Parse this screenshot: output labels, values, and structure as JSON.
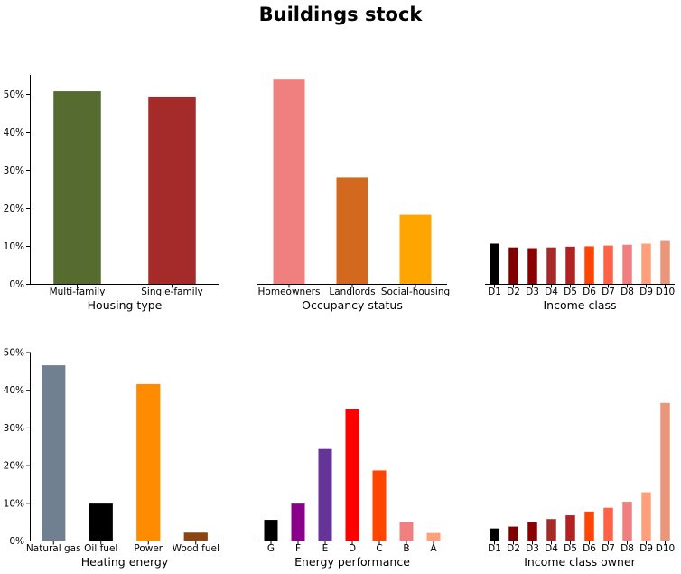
{
  "title": "Buildings stock",
  "chart_data": [
    {
      "type": "bar",
      "xlabel": "Housing type",
      "categories": [
        "Multi-family",
        "Single-family"
      ],
      "values": [
        50.7,
        49.3
      ],
      "colors": [
        "#556b2f",
        "#a52a2a"
      ],
      "ylim": [
        0,
        55
      ],
      "yticks": [
        0,
        10,
        20,
        30,
        40,
        50
      ],
      "ytick_labels": [
        "0%",
        "10%",
        "20%",
        "30%",
        "40%",
        "50%"
      ],
      "show_yaxis": true
    },
    {
      "type": "bar",
      "xlabel": "Occupancy status",
      "categories": [
        "Homeowners",
        "Landlords",
        "Social-housing"
      ],
      "values": [
        54,
        28,
        18.2
      ],
      "colors": [
        "#f08080",
        "#d2691e",
        "#ffa500"
      ],
      "ylim": [
        0,
        55
      ],
      "show_yaxis": false
    },
    {
      "type": "bar",
      "xlabel": "Income class",
      "categories": [
        "D1",
        "D2",
        "D3",
        "D4",
        "D5",
        "D6",
        "D7",
        "D8",
        "D9",
        "D10"
      ],
      "values": [
        10.6,
        9.6,
        9.4,
        9.6,
        9.8,
        9.9,
        10.1,
        10.3,
        10.6,
        11.3
      ],
      "colors": [
        "#000000",
        "#800000",
        "#8b0000",
        "#a52a2a",
        "#b22222",
        "#ff4500",
        "#ff6347",
        "#f08080",
        "#ffa07a",
        "#e9967a"
      ],
      "ylim": [
        0,
        55
      ],
      "show_yaxis": false
    },
    {
      "type": "bar",
      "xlabel": "Heating energy",
      "categories": [
        "Natural gas",
        "Oil fuel",
        "Power",
        "Wood fuel"
      ],
      "values": [
        46.5,
        9.8,
        41.5,
        2.1
      ],
      "colors": [
        "#708090",
        "#000000",
        "#ff8c00",
        "#8b4513"
      ],
      "ylim": [
        0,
        50
      ],
      "yticks": [
        0,
        10,
        20,
        30,
        40,
        50
      ],
      "ytick_labels": [
        "0%",
        "10%",
        "20%",
        "30%",
        "40%",
        "50%"
      ],
      "show_yaxis": true
    },
    {
      "type": "bar",
      "xlabel": "Energy performance",
      "categories": [
        "G",
        "F",
        "E",
        "D",
        "C",
        "B",
        "A"
      ],
      "values": [
        5.5,
        9.8,
        24.3,
        35,
        18.6,
        4.8,
        2
      ],
      "colors": [
        "#000000",
        "#8b008b",
        "#663399",
        "#ff0000",
        "#ff4500",
        "#f08080",
        "#ffa07a"
      ],
      "ylim": [
        0,
        50
      ],
      "show_yaxis": false
    },
    {
      "type": "bar",
      "xlabel": "Income class owner",
      "categories": [
        "D1",
        "D2",
        "D3",
        "D4",
        "D5",
        "D6",
        "D7",
        "D8",
        "D9",
        "D10"
      ],
      "values": [
        3.2,
        3.7,
        4.8,
        5.7,
        6.7,
        7.7,
        8.7,
        10.3,
        12.8,
        36.5
      ],
      "colors": [
        "#000000",
        "#800000",
        "#8b0000",
        "#a52a2a",
        "#b22222",
        "#ff4500",
        "#ff6347",
        "#f08080",
        "#ffa07a",
        "#e9967a"
      ],
      "ylim": [
        0,
        50
      ],
      "show_yaxis": false
    }
  ]
}
